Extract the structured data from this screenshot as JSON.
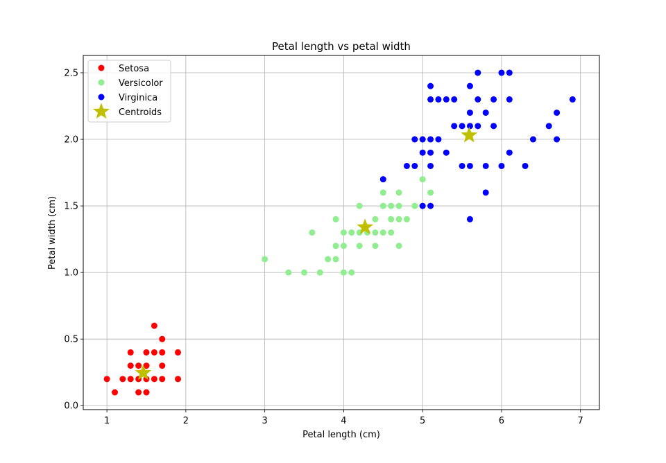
{
  "chart_data": {
    "type": "scatter",
    "title": "Petal length vs petal width",
    "xlabel": "Petal length (cm)",
    "ylabel": "Petal width (cm)",
    "xlim": [
      0.7,
      7.24
    ],
    "ylim": [
      -0.03,
      2.63
    ],
    "xticks": [
      1,
      2,
      3,
      4,
      5,
      6,
      7
    ],
    "xtick_labels": [
      "1",
      "2",
      "3",
      "4",
      "5",
      "6",
      "7"
    ],
    "yticks": [
      0.0,
      0.5,
      1.0,
      1.5,
      2.0,
      2.5
    ],
    "ytick_labels": [
      "0.0",
      "0.5",
      "1.0",
      "1.5",
      "2.0",
      "2.5"
    ],
    "grid": true,
    "legend_position": "top-left",
    "series": [
      {
        "name": "Setosa",
        "color": "#ff0000",
        "marker": "circle",
        "points": [
          [
            1.0,
            0.2
          ],
          [
            1.1,
            0.1
          ],
          [
            1.2,
            0.2
          ],
          [
            1.3,
            0.2
          ],
          [
            1.3,
            0.3
          ],
          [
            1.3,
            0.4
          ],
          [
            1.4,
            0.1
          ],
          [
            1.4,
            0.2
          ],
          [
            1.4,
            0.3
          ],
          [
            1.5,
            0.1
          ],
          [
            1.5,
            0.2
          ],
          [
            1.5,
            0.3
          ],
          [
            1.5,
            0.4
          ],
          [
            1.6,
            0.2
          ],
          [
            1.6,
            0.4
          ],
          [
            1.6,
            0.6
          ],
          [
            1.7,
            0.2
          ],
          [
            1.7,
            0.3
          ],
          [
            1.7,
            0.4
          ],
          [
            1.7,
            0.5
          ],
          [
            1.9,
            0.2
          ],
          [
            1.9,
            0.4
          ]
        ]
      },
      {
        "name": "Versicolor",
        "color": "#90ee90",
        "marker": "circle",
        "points": [
          [
            3.0,
            1.1
          ],
          [
            3.3,
            1.0
          ],
          [
            3.5,
            1.0
          ],
          [
            3.6,
            1.3
          ],
          [
            3.7,
            1.0
          ],
          [
            3.8,
            1.1
          ],
          [
            3.9,
            1.1
          ],
          [
            3.9,
            1.2
          ],
          [
            3.9,
            1.4
          ],
          [
            4.0,
            1.0
          ],
          [
            4.0,
            1.2
          ],
          [
            4.0,
            1.3
          ],
          [
            4.1,
            1.0
          ],
          [
            4.1,
            1.3
          ],
          [
            4.2,
            1.2
          ],
          [
            4.2,
            1.3
          ],
          [
            4.2,
            1.5
          ],
          [
            4.3,
            1.3
          ],
          [
            4.4,
            1.2
          ],
          [
            4.4,
            1.3
          ],
          [
            4.4,
            1.4
          ],
          [
            4.5,
            1.3
          ],
          [
            4.5,
            1.5
          ],
          [
            4.5,
            1.6
          ],
          [
            4.6,
            1.3
          ],
          [
            4.6,
            1.4
          ],
          [
            4.6,
            1.5
          ],
          [
            4.7,
            1.2
          ],
          [
            4.7,
            1.4
          ],
          [
            4.7,
            1.5
          ],
          [
            4.7,
            1.6
          ],
          [
            4.8,
            1.4
          ],
          [
            4.9,
            1.5
          ],
          [
            5.0,
            1.7
          ],
          [
            5.1,
            1.6
          ]
        ]
      },
      {
        "name": "Virginica",
        "color": "#0000ff",
        "marker": "circle",
        "points": [
          [
            4.5,
            1.7
          ],
          [
            4.8,
            1.8
          ],
          [
            4.9,
            1.8
          ],
          [
            4.9,
            2.0
          ],
          [
            5.0,
            1.5
          ],
          [
            5.0,
            1.9
          ],
          [
            5.0,
            2.0
          ],
          [
            5.1,
            1.5
          ],
          [
            5.1,
            1.8
          ],
          [
            5.1,
            1.9
          ],
          [
            5.1,
            2.0
          ],
          [
            5.1,
            2.3
          ],
          [
            5.1,
            2.4
          ],
          [
            5.2,
            2.0
          ],
          [
            5.2,
            2.3
          ],
          [
            5.3,
            1.9
          ],
          [
            5.3,
            2.3
          ],
          [
            5.4,
            2.1
          ],
          [
            5.4,
            2.3
          ],
          [
            5.5,
            1.8
          ],
          [
            5.5,
            2.1
          ],
          [
            5.6,
            1.4
          ],
          [
            5.6,
            1.8
          ],
          [
            5.6,
            2.1
          ],
          [
            5.6,
            2.2
          ],
          [
            5.6,
            2.4
          ],
          [
            5.7,
            2.1
          ],
          [
            5.7,
            2.3
          ],
          [
            5.7,
            2.5
          ],
          [
            5.8,
            1.6
          ],
          [
            5.8,
            1.8
          ],
          [
            5.8,
            2.2
          ],
          [
            5.9,
            2.1
          ],
          [
            5.9,
            2.3
          ],
          [
            6.0,
            1.8
          ],
          [
            6.0,
            2.5
          ],
          [
            6.1,
            1.9
          ],
          [
            6.1,
            2.3
          ],
          [
            6.1,
            2.5
          ],
          [
            6.3,
            1.8
          ],
          [
            6.4,
            2.0
          ],
          [
            6.6,
            2.1
          ],
          [
            6.7,
            2.0
          ],
          [
            6.7,
            2.2
          ],
          [
            6.9,
            2.3
          ]
        ]
      },
      {
        "name": "Centroids",
        "color": "#bfbf00",
        "marker": "star",
        "points": [
          [
            1.46,
            0.246
          ],
          [
            4.27,
            1.34
          ],
          [
            5.59,
            2.03
          ]
        ]
      }
    ]
  }
}
